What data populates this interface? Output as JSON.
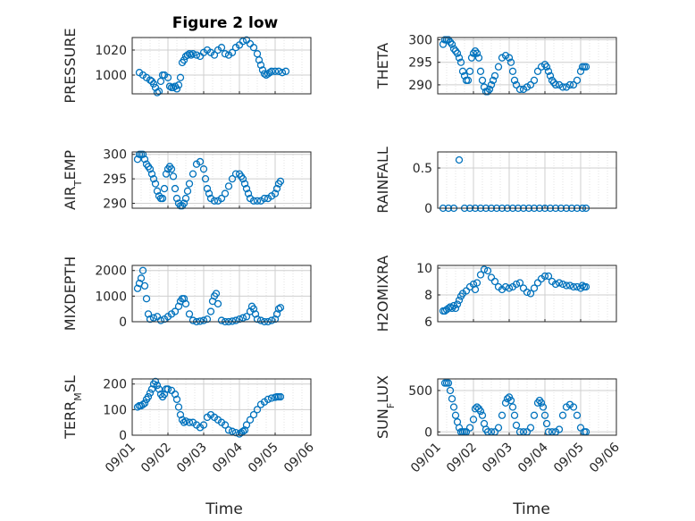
{
  "figure": {
    "title": "Figure 2 low",
    "xlabel": "Time"
  },
  "colors": {
    "marker": "#0072BD",
    "axis": "#262626",
    "grid": "#cfcfcf",
    "minorgrid": "#e3e3e3"
  },
  "chart_data": [
    {
      "type": "scatter",
      "ylabel": "PRESSURE",
      "ylim": [
        985,
        1030
      ],
      "yticks": [
        1000,
        1020
      ],
      "xlim": [
        0,
        5
      ],
      "xticks": [
        "09/01",
        "09/02",
        "09/03",
        "09/04",
        "09/05",
        "09/06"
      ],
      "grid": true,
      "series": [
        {
          "x": [
            0.2,
            0.3,
            0.4,
            0.5,
            0.55,
            0.6,
            0.65,
            0.7,
            0.75,
            0.8,
            0.85,
            0.9,
            1.0,
            1.05,
            1.1,
            1.15,
            1.2,
            1.25,
            1.3,
            1.35,
            1.4,
            1.45,
            1.5,
            1.55,
            1.6,
            1.65,
            1.7,
            1.8,
            1.9,
            2.0,
            2.1,
            2.2,
            2.3,
            2.4,
            2.5,
            2.6,
            2.7,
            2.8,
            2.9,
            3.0,
            3.1,
            3.2,
            3.3,
            3.4,
            3.5,
            3.55,
            3.6,
            3.65,
            3.7,
            3.75,
            3.8,
            3.85,
            3.9,
            4.0,
            4.1,
            4.2,
            4.3
          ],
          "y": [
            1002,
            1000,
            998,
            996,
            995,
            993,
            990,
            986,
            987,
            995,
            1000,
            1000,
            998,
            991,
            990,
            990,
            991,
            989,
            992,
            998,
            1010,
            1012,
            1015,
            1016,
            1017,
            1016,
            1017,
            1016,
            1015,
            1018,
            1020,
            1018,
            1016,
            1020,
            1022,
            1017,
            1016,
            1018,
            1022,
            1024,
            1027,
            1028,
            1025,
            1022,
            1017,
            1012,
            1008,
            1004,
            1001,
            1000,
            1001,
            1002,
            1003,
            1003,
            1003,
            1002,
            1003
          ]
        }
      ]
    },
    {
      "type": "scatter",
      "ylabel": "THETA",
      "ylim": [
        288,
        300.5
      ],
      "yticks": [
        290,
        295,
        300
      ],
      "xlim": [
        0,
        5
      ],
      "xticks": [
        "09/01",
        "09/02",
        "09/03",
        "09/04",
        "09/05",
        "09/06"
      ],
      "grid": true,
      "series": [
        {
          "x": [
            0.15,
            0.2,
            0.25,
            0.3,
            0.35,
            0.4,
            0.45,
            0.5,
            0.55,
            0.6,
            0.65,
            0.7,
            0.75,
            0.8,
            0.85,
            0.9,
            0.95,
            1.0,
            1.05,
            1.1,
            1.15,
            1.2,
            1.25,
            1.3,
            1.35,
            1.4,
            1.45,
            1.5,
            1.55,
            1.6,
            1.7,
            1.8,
            1.9,
            2.0,
            2.05,
            2.1,
            2.15,
            2.2,
            2.3,
            2.4,
            2.5,
            2.6,
            2.7,
            2.8,
            2.9,
            3.0,
            3.05,
            3.1,
            3.15,
            3.2,
            3.25,
            3.3,
            3.4,
            3.5,
            3.6,
            3.7,
            3.8,
            3.9,
            4.0,
            4.05,
            4.1,
            4.15
          ],
          "y": [
            299,
            300,
            300,
            300,
            299.5,
            299,
            298,
            297.5,
            297,
            296,
            295,
            293,
            292,
            291,
            291,
            293,
            296,
            297,
            297.5,
            297,
            296,
            293,
            291,
            289.5,
            288.5,
            288.5,
            289,
            290,
            291,
            292,
            294,
            296,
            296.5,
            296,
            295,
            293,
            291,
            290,
            289,
            289,
            289.5,
            290,
            291,
            293,
            294,
            294.5,
            294,
            293,
            292,
            291,
            290.5,
            290,
            290,
            289.5,
            289.5,
            290,
            290,
            291,
            293,
            294,
            294,
            294
          ]
        }
      ]
    },
    {
      "type": "scatter",
      "ylabel": "AIR_TEMP",
      "ylim": [
        289,
        300.5
      ],
      "yticks": [
        290,
        295,
        300
      ],
      "xlim": [
        0,
        5
      ],
      "xticks": [
        "09/01",
        "09/02",
        "09/03",
        "09/04",
        "09/05",
        "09/06"
      ],
      "grid": true,
      "series": [
        {
          "x": [
            0.15,
            0.2,
            0.25,
            0.3,
            0.35,
            0.4,
            0.45,
            0.5,
            0.55,
            0.6,
            0.65,
            0.7,
            0.75,
            0.8,
            0.85,
            0.9,
            0.95,
            1.0,
            1.05,
            1.1,
            1.15,
            1.2,
            1.25,
            1.3,
            1.35,
            1.4,
            1.45,
            1.5,
            1.55,
            1.6,
            1.7,
            1.8,
            1.9,
            2.0,
            2.05,
            2.1,
            2.15,
            2.2,
            2.3,
            2.4,
            2.5,
            2.6,
            2.7,
            2.8,
            2.9,
            3.0,
            3.05,
            3.1,
            3.15,
            3.2,
            3.25,
            3.3,
            3.4,
            3.5,
            3.6,
            3.7,
            3.8,
            3.9,
            4.0,
            4.05,
            4.1,
            4.15
          ],
          "y": [
            299,
            300,
            300,
            300,
            299,
            298,
            297.5,
            297,
            296,
            295,
            294,
            292.5,
            291.5,
            291,
            291,
            293,
            296,
            297,
            297.5,
            297,
            295.5,
            293,
            291,
            290,
            289.5,
            289.5,
            290,
            291,
            292.5,
            294,
            296,
            298,
            298.5,
            297,
            295,
            293,
            292,
            291,
            290.5,
            290.5,
            291,
            292,
            293.5,
            295,
            296,
            296,
            295.5,
            295,
            294,
            293,
            292,
            291,
            290.5,
            290.5,
            290.5,
            291,
            291,
            291.5,
            292,
            293,
            294,
            294.5
          ]
        }
      ]
    },
    {
      "type": "scatter",
      "ylabel": "RAINFALL",
      "ylim": [
        0,
        0.7
      ],
      "yticks": [
        0,
        0.5
      ],
      "xlim": [
        0,
        5
      ],
      "xticks": [
        "09/01",
        "09/02",
        "09/03",
        "09/04",
        "09/05",
        "09/06"
      ],
      "grid": true,
      "series": [
        {
          "x": [
            0.15,
            0.3,
            0.45,
            0.6,
            0.75,
            0.9,
            1.05,
            1.2,
            1.35,
            1.5,
            1.65,
            1.8,
            1.95,
            2.1,
            2.25,
            2.4,
            2.55,
            2.7,
            2.85,
            3.0,
            3.15,
            3.3,
            3.45,
            3.6,
            3.75,
            3.9,
            4.05,
            4.15
          ],
          "y": [
            0,
            0,
            0,
            0.6,
            0,
            0,
            0,
            0,
            0,
            0,
            0,
            0,
            0,
            0,
            0,
            0,
            0,
            0,
            0,
            0,
            0,
            0,
            0,
            0,
            0,
            0,
            0,
            0
          ]
        }
      ]
    },
    {
      "type": "scatter",
      "ylabel": "MIXDEPTH",
      "ylim": [
        0,
        2200
      ],
      "yticks": [
        0,
        1000,
        2000
      ],
      "xlim": [
        0,
        5
      ],
      "xticks": [
        "09/01",
        "09/02",
        "09/03",
        "09/04",
        "09/05",
        "09/06"
      ],
      "grid": true,
      "series": [
        {
          "x": [
            0.15,
            0.2,
            0.25,
            0.3,
            0.35,
            0.4,
            0.45,
            0.5,
            0.6,
            0.7,
            0.8,
            0.9,
            1.0,
            1.1,
            1.2,
            1.3,
            1.35,
            1.4,
            1.45,
            1.5,
            1.6,
            1.7,
            1.8,
            1.9,
            2.0,
            2.1,
            2.2,
            2.25,
            2.3,
            2.35,
            2.4,
            2.5,
            2.6,
            2.7,
            2.8,
            2.9,
            3.0,
            3.1,
            3.2,
            3.3,
            3.35,
            3.4,
            3.45,
            3.5,
            3.6,
            3.7,
            3.8,
            3.9,
            4.0,
            4.05,
            4.1,
            4.15
          ],
          "y": [
            1300,
            1500,
            1700,
            2000,
            1400,
            900,
            300,
            100,
            150,
            200,
            50,
            100,
            200,
            300,
            400,
            600,
            800,
            900,
            900,
            700,
            300,
            50,
            0,
            20,
            50,
            100,
            400,
            800,
            1000,
            1100,
            700,
            50,
            0,
            0,
            20,
            50,
            100,
            150,
            200,
            400,
            600,
            500,
            300,
            100,
            50,
            0,
            0,
            50,
            100,
            300,
            500,
            550
          ]
        }
      ]
    },
    {
      "type": "scatter",
      "ylabel": "H2OMIXRA",
      "ylim": [
        6,
        10.2
      ],
      "yticks": [
        6,
        8,
        10
      ],
      "xlim": [
        0,
        5
      ],
      "xticks": [
        "09/01",
        "09/02",
        "09/03",
        "09/04",
        "09/05",
        "09/06"
      ],
      "grid": true,
      "series": [
        {
          "x": [
            0.15,
            0.2,
            0.25,
            0.3,
            0.35,
            0.4,
            0.45,
            0.5,
            0.55,
            0.6,
            0.65,
            0.7,
            0.8,
            0.9,
            1.0,
            1.05,
            1.1,
            1.2,
            1.3,
            1.4,
            1.5,
            1.6,
            1.7,
            1.8,
            1.9,
            2.0,
            2.1,
            2.2,
            2.3,
            2.4,
            2.5,
            2.6,
            2.7,
            2.8,
            2.9,
            3.0,
            3.1,
            3.2,
            3.3,
            3.4,
            3.5,
            3.6,
            3.7,
            3.8,
            3.9,
            4.0,
            4.05,
            4.1,
            4.15
          ],
          "y": [
            6.8,
            6.8,
            6.9,
            7.0,
            7.1,
            7.0,
            7.2,
            7.0,
            7.3,
            7.6,
            7.9,
            8.1,
            8.3,
            8.6,
            8.8,
            8.4,
            8.9,
            9.5,
            9.9,
            9.8,
            9.3,
            9.0,
            8.6,
            8.4,
            8.6,
            8.5,
            8.6,
            8.8,
            8.9,
            8.5,
            8.2,
            8.1,
            8.5,
            8.9,
            9.2,
            9.4,
            9.4,
            9.0,
            8.8,
            8.9,
            8.8,
            8.7,
            8.7,
            8.6,
            8.6,
            8.5,
            8.7,
            8.6,
            8.6
          ]
        }
      ]
    },
    {
      "type": "scatter",
      "ylabel": "TERR_MSL",
      "ylim": [
        0,
        220
      ],
      "yticks": [
        0,
        100,
        200
      ],
      "xlim": [
        0,
        5
      ],
      "xticks": [
        "09/01",
        "09/02",
        "09/03",
        "09/04",
        "09/05",
        "09/06"
      ],
      "grid": true,
      "series": [
        {
          "x": [
            0.15,
            0.2,
            0.25,
            0.3,
            0.35,
            0.4,
            0.45,
            0.5,
            0.55,
            0.6,
            0.65,
            0.7,
            0.75,
            0.8,
            0.85,
            0.9,
            0.95,
            1.0,
            1.1,
            1.2,
            1.25,
            1.3,
            1.35,
            1.4,
            1.45,
            1.5,
            1.6,
            1.7,
            1.8,
            1.9,
            2.0,
            2.1,
            2.2,
            2.3,
            2.4,
            2.5,
            2.6,
            2.7,
            2.8,
            2.9,
            3.0,
            3.05,
            3.1,
            3.15,
            3.2,
            3.3,
            3.4,
            3.5,
            3.6,
            3.7,
            3.8,
            3.9,
            4.0,
            4.05,
            4.1,
            4.15
          ],
          "y": [
            110,
            115,
            115,
            120,
            125,
            140,
            150,
            165,
            180,
            200,
            210,
            195,
            180,
            160,
            150,
            160,
            180,
            180,
            175,
            160,
            140,
            110,
            80,
            60,
            50,
            55,
            50,
            50,
            40,
            30,
            40,
            70,
            80,
            70,
            60,
            50,
            40,
            20,
            15,
            10,
            5,
            10,
            15,
            20,
            40,
            60,
            80,
            100,
            120,
            130,
            140,
            145,
            148,
            150,
            150,
            150
          ]
        }
      ]
    },
    {
      "type": "scatter",
      "ylabel": "SUN_FLUX",
      "ylim": [
        -40,
        640
      ],
      "yticks": [
        0,
        500
      ],
      "xlim": [
        0,
        5
      ],
      "xticks": [
        "09/01",
        "09/02",
        "09/03",
        "09/04",
        "09/05",
        "09/06"
      ],
      "grid": true,
      "series": [
        {
          "x": [
            0.2,
            0.25,
            0.3,
            0.35,
            0.4,
            0.45,
            0.5,
            0.55,
            0.6,
            0.65,
            0.7,
            0.75,
            0.8,
            0.9,
            1.0,
            1.05,
            1.1,
            1.15,
            1.2,
            1.25,
            1.3,
            1.35,
            1.4,
            1.5,
            1.6,
            1.7,
            1.8,
            1.9,
            1.95,
            2.0,
            2.05,
            2.1,
            2.15,
            2.2,
            2.3,
            2.4,
            2.5,
            2.6,
            2.7,
            2.8,
            2.85,
            2.9,
            2.95,
            3.0,
            3.05,
            3.1,
            3.2,
            3.3,
            3.4,
            3.5,
            3.6,
            3.7,
            3.8,
            3.9,
            4.0,
            4.1,
            4.15
          ],
          "y": [
            590,
            590,
            590,
            500,
            400,
            300,
            200,
            120,
            50,
            0,
            0,
            0,
            0,
            50,
            150,
            280,
            300,
            280,
            250,
            200,
            100,
            30,
            0,
            0,
            0,
            50,
            200,
            350,
            400,
            420,
            380,
            300,
            200,
            80,
            0,
            0,
            0,
            50,
            200,
            350,
            380,
            350,
            300,
            200,
            100,
            0,
            0,
            0,
            30,
            200,
            300,
            330,
            300,
            200,
            50,
            0,
            0
          ]
        }
      ]
    }
  ]
}
